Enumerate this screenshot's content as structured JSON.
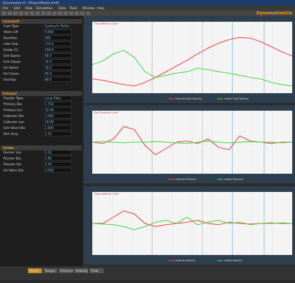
{
  "window": {
    "title": "Dynomation-6 - [ProjectModel.dm6]",
    "menu": [
      "File",
      "Edit",
      "View",
      "Simulation",
      "Data",
      "Tools",
      "Window",
      "Help"
    ],
    "logo": "DynomationSix"
  },
  "panel": {
    "sections": [
      {
        "title": "Camshaft",
        "rows": [
          [
            "Cam Type",
            "Hydraulic Roller"
          ],
          [
            "Valve Lift",
            "0.600"
          ],
          [
            "Duration",
            "280"
          ],
          [
            "Lobe Sep.",
            "110.0"
          ],
          [
            "Intake CL",
            "106.0"
          ],
          [
            "Exh Opens",
            "66.0"
          ],
          [
            "Exh Closes",
            "34.0"
          ],
          [
            "Int Opens",
            "34.0"
          ],
          [
            "Int Closes",
            "66.0"
          ],
          [
            "Overlap",
            "68.0"
          ]
        ]
      },
      {
        "title": "Exhaust",
        "rows": [
          [
            "Header Type",
            "Long Tube"
          ],
          [
            "Primary Dia",
            "1.750"
          ],
          [
            "Primary Len",
            "32.00"
          ],
          [
            "Collector Dia",
            "3.000"
          ],
          [
            "Collector Len",
            "18.00"
          ],
          [
            "Exh Valve Dia",
            "1.600"
          ],
          [
            "Port Area",
            "2.10"
          ]
        ]
      },
      {
        "title": "Intake",
        "rows": [
          [
            "Runner Len",
            "6.50"
          ],
          [
            "Runner Dia",
            "1.85"
          ],
          [
            "Plenum Vol",
            "2.40"
          ],
          [
            "Int Valve Dia",
            "2.050"
          ]
        ]
      }
    ]
  },
  "tabs": [
    "Power",
    "Torque",
    "Pressure",
    "Velocity",
    "Flow"
  ],
  "charts": [
    {
      "title": "Flow Velocity Chart",
      "ylim": [
        0,
        100
      ],
      "series": [
        {
          "name": "Exhaust Flow Velocity",
          "color": "#ff3b3b",
          "values": [
            20,
            18,
            15,
            12,
            10,
            15,
            22,
            30,
            38,
            46,
            55,
            63,
            70,
            75,
            78,
            77,
            72,
            65,
            58,
            52
          ]
        },
        {
          "name": "Intake Flow Velocity",
          "color": "#3bd63b",
          "values": [
            40,
            45,
            55,
            60,
            50,
            30,
            22,
            25,
            28,
            30,
            35,
            33,
            30,
            28,
            25,
            22,
            20,
            15,
            12,
            10
          ]
        }
      ]
    },
    {
      "title": "Port Pressure Chart",
      "ylim": [
        0,
        100
      ],
      "series": [
        {
          "name": "Exhaust Pressure",
          "color": "#ff3b3b",
          "values": [
            50,
            48,
            55,
            75,
            70,
            45,
            30,
            40,
            50,
            52,
            48,
            55,
            42,
            38,
            60,
            52,
            50,
            48,
            50,
            50
          ]
        },
        {
          "name": "Intake Pressure",
          "color": "#3bd63b",
          "values": [
            50,
            51,
            50,
            49,
            50,
            50,
            51,
            50,
            49,
            48,
            50,
            52,
            50,
            49,
            50,
            51,
            50,
            50,
            49,
            50
          ]
        }
      ]
    },
    {
      "title": "Valve Velocity Chart",
      "ylim": [
        0,
        100
      ],
      "series": [
        {
          "name": "Exhaust Velocity",
          "color": "#ff3b3b",
          "values": [
            50,
            50,
            60,
            70,
            65,
            50,
            45,
            48,
            50,
            52,
            55,
            50,
            48,
            52,
            50,
            49,
            50,
            51,
            50,
            50
          ]
        },
        {
          "name": "Intake Velocity",
          "color": "#3bd63b",
          "values": [
            50,
            49,
            48,
            45,
            40,
            45,
            52,
            55,
            50,
            60,
            48,
            52,
            55,
            50,
            52,
            48,
            50,
            50,
            51,
            50
          ]
        }
      ]
    }
  ]
}
